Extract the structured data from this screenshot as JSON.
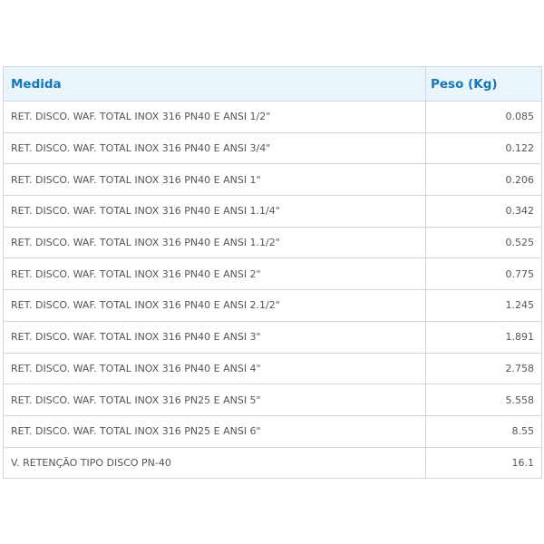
{
  "table": {
    "headers": {
      "medida": "Medida",
      "peso": "Peso (Kg)"
    },
    "rows": [
      {
        "medida": "RET. DISCO. WAF. TOTAL INOX 316 PN40 E ANSI 1/2\"",
        "peso": "0.085"
      },
      {
        "medida": "RET. DISCO. WAF. TOTAL INOX 316 PN40 E ANSI 3/4\"",
        "peso": "0.122"
      },
      {
        "medida": "RET. DISCO. WAF. TOTAL INOX 316 PN40 E ANSI 1\"",
        "peso": "0.206"
      },
      {
        "medida": "RET. DISCO. WAF. TOTAL INOX 316 PN40 E ANSI 1.1/4\"",
        "peso": "0.342"
      },
      {
        "medida": "RET. DISCO. WAF. TOTAL INOX 316 PN40 E ANSI 1.1/2\"",
        "peso": "0.525"
      },
      {
        "medida": "RET. DISCO. WAF. TOTAL INOX 316 PN40 E ANSI 2\"",
        "peso": "0.775"
      },
      {
        "medida": "RET. DISCO. WAF. TOTAL INOX 316 PN40 E ANSI 2.1/2\"",
        "peso": "1.245"
      },
      {
        "medida": "RET. DISCO. WAF. TOTAL INOX 316 PN40 E ANSI 3\"",
        "peso": "1.891"
      },
      {
        "medida": "RET. DISCO. WAF. TOTAL INOX 316 PN40 E ANSI 4\"",
        "peso": "2.758"
      },
      {
        "medida": "RET. DISCO. WAF. TOTAL INOX 316 PN25 E ANSI 5\"",
        "peso": "5.558"
      },
      {
        "medida": "RET. DISCO. WAF. TOTAL INOX 316 PN25 E ANSI 6\"",
        "peso": "8.55"
      },
      {
        "medida": "V. RETENÇÃO TIPO DISCO PN-40",
        "peso": "16.1"
      }
    ]
  },
  "colors": {
    "header_bg": "#e9f4fb",
    "header_text": "#1577b7",
    "cell_text": "#555555",
    "border": "#d6d6d6"
  }
}
